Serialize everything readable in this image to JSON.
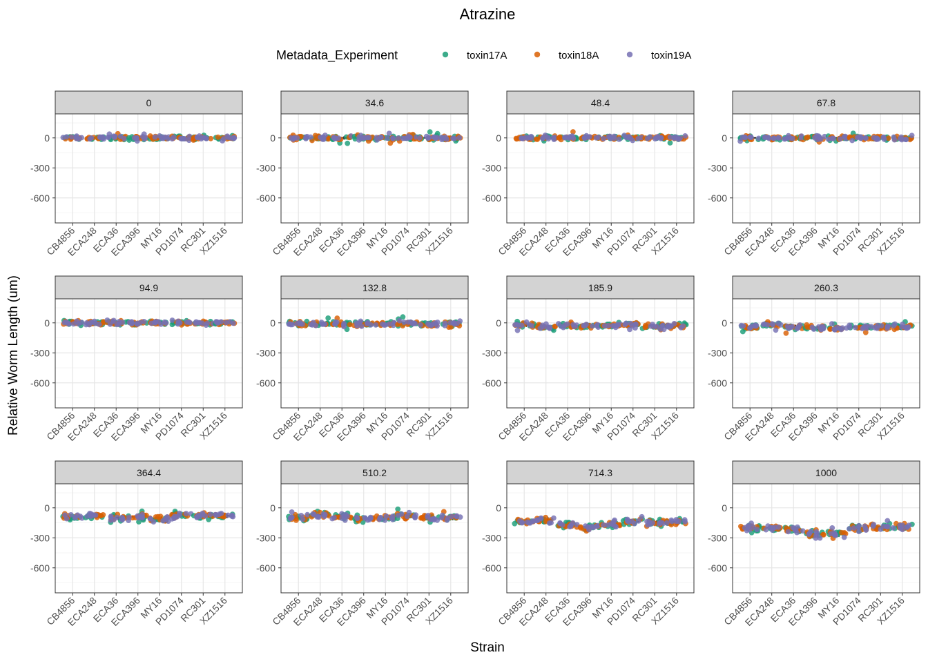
{
  "chart_data": {
    "type": "scatter",
    "title": "Atrazine",
    "xlabel": "Strain",
    "ylabel": "Relative Worm Length (um)",
    "legend": {
      "title": "Metadata_Experiment",
      "position": "top",
      "entries": [
        {
          "name": "toxin17A",
          "color": "#1b9e77"
        },
        {
          "name": "toxin18A",
          "color": "#d95f02"
        },
        {
          "name": "toxin19A",
          "color": "#7570b3"
        }
      ]
    },
    "strains": [
      "CB4856",
      "ECA248",
      "ECA36",
      "ECA396",
      "MY16",
      "PD1074",
      "RC301",
      "XZ1516"
    ],
    "y_ticks": [
      0,
      -300,
      -600
    ],
    "ylim": [
      -850,
      240
    ],
    "points_per_strain_per_experiment": 8,
    "facets": [
      {
        "label": "0",
        "medians": [
          0,
          0,
          0,
          0,
          0,
          0,
          0,
          0
        ],
        "spread": 25
      },
      {
        "label": "34.6",
        "medians": [
          0,
          0,
          0,
          0,
          0,
          0,
          0,
          0
        ],
        "spread": 30
      },
      {
        "label": "48.4",
        "medians": [
          0,
          0,
          0,
          0,
          0,
          0,
          0,
          0
        ],
        "spread": 30
      },
      {
        "label": "67.8",
        "medians": [
          0,
          0,
          0,
          0,
          0,
          0,
          0,
          0
        ],
        "spread": 30
      },
      {
        "label": "94.9",
        "medians": [
          0,
          0,
          0,
          0,
          0,
          0,
          0,
          0
        ],
        "spread": 30
      },
      {
        "label": "132.8",
        "medians": [
          -10,
          -10,
          -10,
          -10,
          -10,
          0,
          -10,
          -10
        ],
        "spread": 35
      },
      {
        "label": "185.9",
        "medians": [
          -20,
          -40,
          -30,
          -30,
          -30,
          -10,
          -30,
          -30
        ],
        "spread": 35
      },
      {
        "label": "260.3",
        "medians": [
          -40,
          -20,
          -40,
          -50,
          -60,
          -40,
          -40,
          -40
        ],
        "spread": 35
      },
      {
        "label": "364.4",
        "medians": [
          -90,
          -80,
          -100,
          -90,
          -110,
          -70,
          -80,
          -80
        ],
        "spread": 40
      },
      {
        "label": "510.2",
        "medians": [
          -100,
          -70,
          -90,
          -110,
          -100,
          -80,
          -100,
          -100
        ],
        "spread": 40
      },
      {
        "label": "714.3",
        "medians": [
          -140,
          -120,
          -170,
          -190,
          -170,
          -140,
          -150,
          -140
        ],
        "spread": 45
      },
      {
        "label": "1000",
        "medians": [
          -200,
          -200,
          -220,
          -260,
          -260,
          -200,
          -190,
          -190
        ],
        "spread": 50
      }
    ]
  }
}
